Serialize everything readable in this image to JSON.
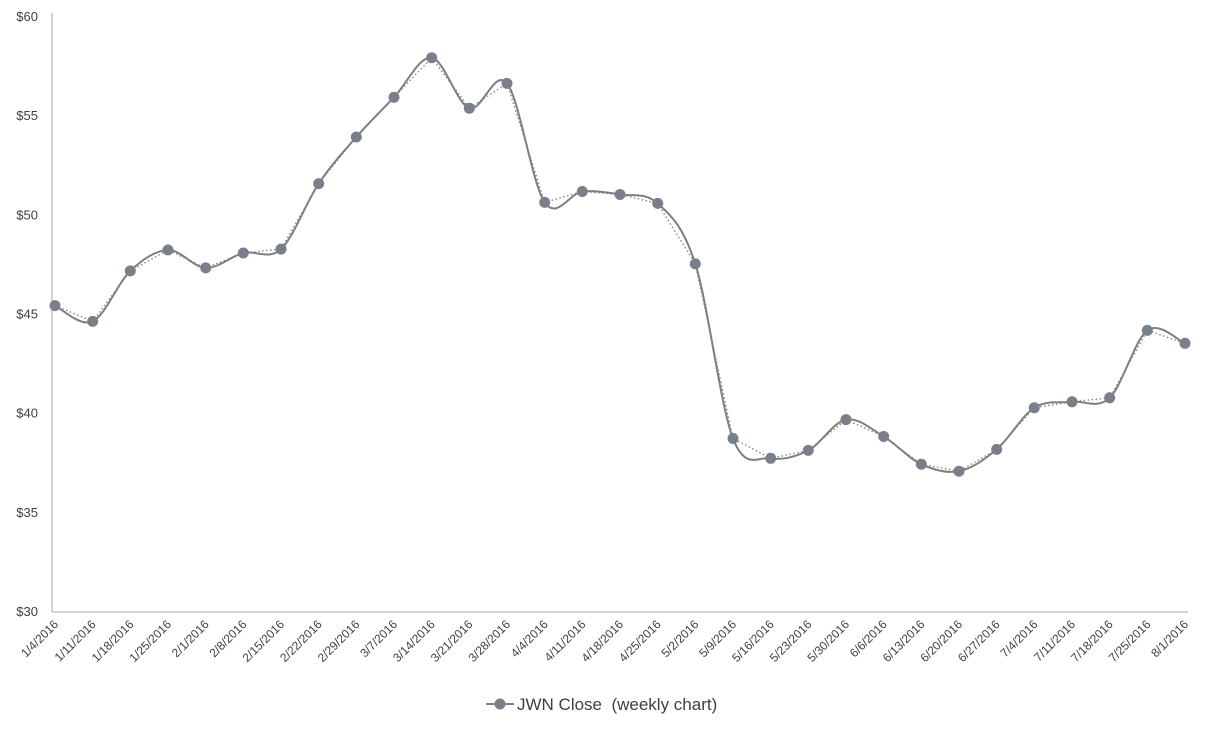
{
  "chart_data": {
    "type": "line",
    "title": "",
    "xlabel": "",
    "ylabel": "",
    "ylim": [
      30,
      60
    ],
    "y_ticks": [
      "$30",
      "$35",
      "$40",
      "$45",
      "$50",
      "$55",
      "$60"
    ],
    "y_tick_values": [
      30,
      35,
      40,
      45,
      50,
      55,
      60
    ],
    "grid": false,
    "legend_position": "bottom",
    "categories": [
      "1/4/2016",
      "1/11/2016",
      "1/18/2016",
      "1/25/2016",
      "2/1/2016",
      "2/8/2016",
      "2/15/2016",
      "2/22/2016",
      "2/29/2016",
      "3/7/2016",
      "3/14/2016",
      "3/21/2016",
      "3/28/2016",
      "4/4/2016",
      "4/11/2016",
      "4/18/2016",
      "4/25/2016",
      "5/2/2016",
      "5/9/2016",
      "5/16/2016",
      "5/23/2016",
      "5/30/2016",
      "6/6/2016",
      "6/13/2016",
      "6/20/2016",
      "6/27/2016",
      "7/4/2016",
      "7/11/2016",
      "7/18/2016",
      "7/25/2016",
      "8/1/2016"
    ],
    "series": [
      {
        "name": "JWN Close  (weekly chart)",
        "color": "#7f7f7f",
        "marker_color": "#7a808a",
        "values": [
          45.45,
          44.65,
          47.2,
          48.25,
          47.35,
          48.1,
          48.3,
          51.6,
          53.95,
          55.95,
          57.95,
          55.4,
          56.65,
          50.65,
          51.2,
          51.05,
          50.6,
          47.55,
          38.75,
          37.75,
          38.15,
          39.7,
          38.85,
          37.45,
          37.1,
          38.2,
          40.3,
          40.6,
          40.8,
          44.2,
          43.55
        ]
      }
    ],
    "trendline": {
      "style": "dotted",
      "color": "#7f7f7f"
    }
  }
}
